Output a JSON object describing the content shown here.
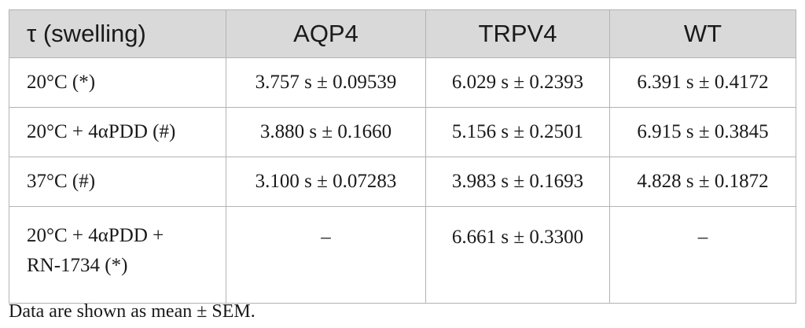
{
  "table": {
    "headers": [
      "τ (swelling)",
      "AQP4",
      "TRPV4",
      "WT"
    ],
    "rows": [
      {
        "label": "20°C (*)",
        "aqp4": "3.757 s ± 0.09539",
        "trpv4": "6.029 s ± 0.2393",
        "wt": "6.391 s ± 0.4172"
      },
      {
        "label": "20°C + 4αPDD (#)",
        "aqp4": "3.880 s ± 0.1660",
        "trpv4": "5.156 s ± 0.2501",
        "wt": "6.915 s ± 0.3845"
      },
      {
        "label": "37°C (#)",
        "aqp4": "3.100 s ± 0.07283",
        "trpv4": "3.983 s ± 0.1693",
        "wt": "4.828 s ± 0.1872"
      },
      {
        "label_line1": "20°C + 4αPDD +",
        "label_line2": "RN-1734 (*)",
        "aqp4": "–",
        "trpv4": "6.661 s ± 0.3300",
        "wt": "–"
      }
    ]
  },
  "footnote": "Data are shown as mean ± SEM."
}
